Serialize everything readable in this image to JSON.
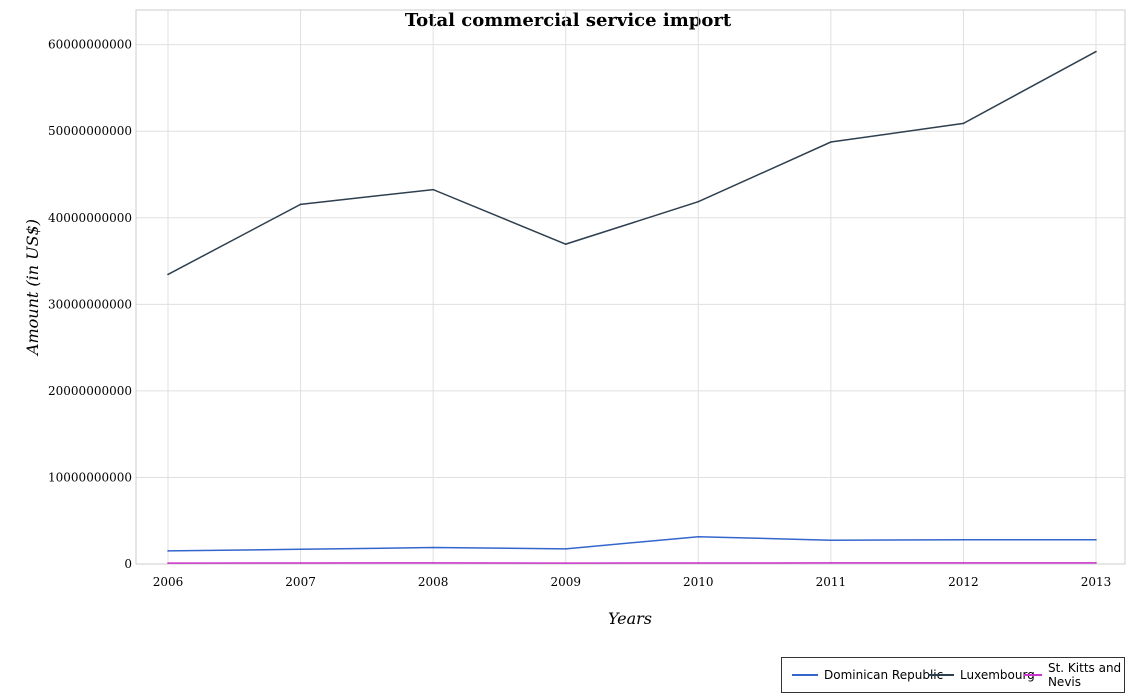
{
  "title": "Total commercial service import",
  "chart_data": {
    "type": "line",
    "title": "Total commercial service import",
    "xlabel": "Years",
    "ylabel": "Amount (in US$)",
    "categories": [
      "2006",
      "2007",
      "2008",
      "2009",
      "2010",
      "2011",
      "2012",
      "2013"
    ],
    "ylim": [
      0,
      64000000000
    ],
    "yticks": [
      0,
      10000000000,
      20000000000,
      30000000000,
      40000000000,
      50000000000,
      60000000000
    ],
    "ytick_labels": [
      "0",
      "10000000000",
      "20000000000",
      "30000000000",
      "40000000000",
      "50000000000",
      "60000000000"
    ],
    "grid": true,
    "legend_position": "bottom-right",
    "series": [
      {
        "name": "Dominican Republic",
        "color": "#3366cc",
        "values": [
          1510000000,
          1700000000,
          1900000000,
          1750000000,
          3150000000,
          2750000000,
          2800000000,
          2800000000
        ]
      },
      {
        "name": "Luxembourg",
        "color": "#2e3f4f",
        "values": [
          33450000000,
          41550000000,
          43250000000,
          36950000000,
          41850000000,
          48750000000,
          50900000000,
          59200000000
        ]
      },
      {
        "name": "St. Kitts and Nevis",
        "color": "#cc33cc",
        "values": [
          105000000,
          115000000,
          130000000,
          108000000,
          120000000,
          125000000,
          128000000,
          135000000
        ]
      }
    ]
  }
}
